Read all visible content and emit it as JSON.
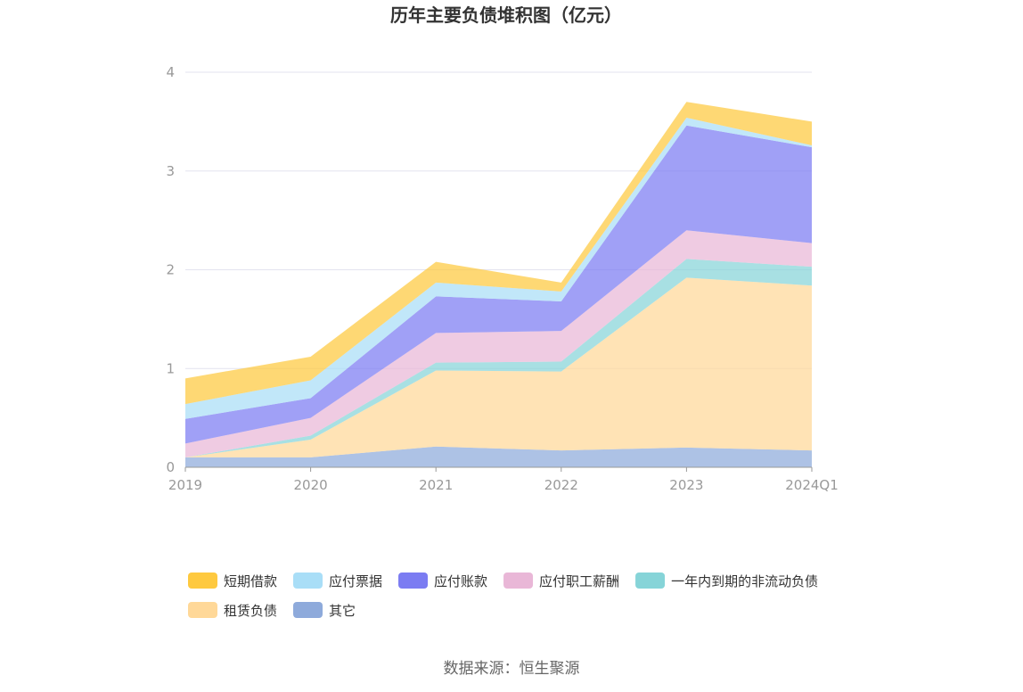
{
  "chart_data": {
    "type": "area",
    "stacked": true,
    "title": "历年主要负债堆积图（亿元）",
    "x": [
      "2019",
      "2020",
      "2021",
      "2022",
      "2023",
      "2024Q1"
    ],
    "ylim": [
      0,
      4
    ],
    "yticks": [
      "0",
      "1",
      "2",
      "3",
      "4"
    ],
    "grid": true,
    "legend_position": "bottom",
    "series": [
      {
        "name": "其它",
        "color": "#8eaadb",
        "values": [
          0.1,
          0.1,
          0.21,
          0.17,
          0.2,
          0.17
        ]
      },
      {
        "name": "租赁负债",
        "color": "#ffd898",
        "values": [
          0.0,
          0.18,
          0.77,
          0.8,
          1.72,
          1.67
        ]
      },
      {
        "name": "一年内到期的非流动负债",
        "color": "#86d4d8",
        "values": [
          0.0,
          0.04,
          0.08,
          0.1,
          0.19,
          0.19
        ]
      },
      {
        "name": "应付职工薪酬",
        "color": "#e9b7d7",
        "values": [
          0.14,
          0.18,
          0.3,
          0.31,
          0.29,
          0.24
        ]
      },
      {
        "name": "应付账款",
        "color": "#7b7cf2",
        "values": [
          0.25,
          0.2,
          0.37,
          0.3,
          1.06,
          0.97
        ]
      },
      {
        "name": "应付票据",
        "color": "#a9def7",
        "values": [
          0.15,
          0.18,
          0.14,
          0.1,
          0.08,
          0.02
        ]
      },
      {
        "name": "短期借款",
        "color": "#fec93f",
        "values": [
          0.26,
          0.24,
          0.21,
          0.09,
          0.16,
          0.24
        ]
      }
    ],
    "legend_order": [
      "短期借款",
      "应付票据",
      "应付账款",
      "应付职工薪酬",
      "一年内到期的非流动负债",
      "租赁负债",
      "其它"
    ]
  },
  "footer": {
    "source": "数据来源：恒生聚源"
  }
}
